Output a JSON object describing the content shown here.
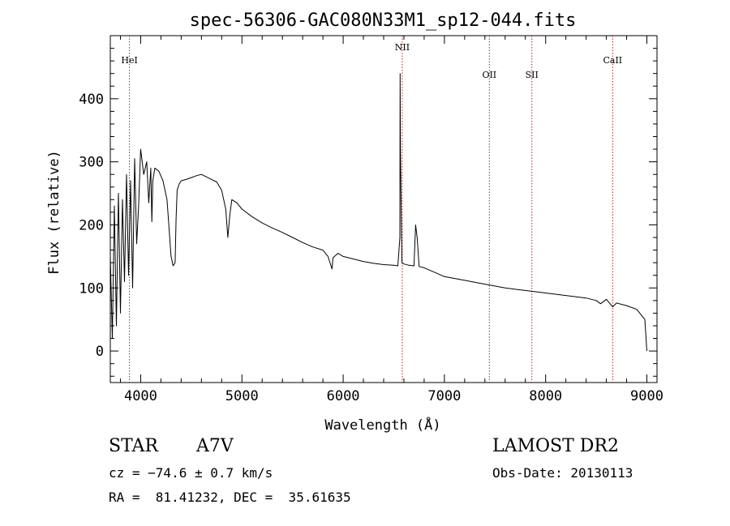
{
  "chart_data": {
    "type": "line",
    "title": "spec-56306-GAC080N33M1_sp12-044.fits",
    "xlabel": "Wavelength (Å)",
    "ylabel": "Flux (relative)",
    "xlim": [
      3700,
      9100
    ],
    "ylim": [
      -50,
      500
    ],
    "x_ticks": [
      4000,
      5000,
      6000,
      7000,
      8000,
      9000
    ],
    "x_tick_labels": [
      "4000",
      "5000",
      "6000",
      "7000",
      "8000",
      "9000"
    ],
    "y_ticks": [
      0,
      100,
      200,
      300,
      400
    ],
    "y_tick_labels": [
      "0",
      "100",
      "200",
      "300",
      "400"
    ],
    "grid": false,
    "series": [
      {
        "x": [
          3700,
          3720,
          3740,
          3760,
          3780,
          3800,
          3820,
          3840,
          3860,
          3880,
          3900,
          3920,
          3940,
          3960,
          3980,
          4000,
          4030,
          4060,
          4080,
          4100,
          4110,
          4120,
          4140,
          4180,
          4220,
          4260,
          4300,
          4320,
          4340,
          4350,
          4360,
          4380,
          4400,
          4450,
          4500,
          4550,
          4600,
          4650,
          4700,
          4750,
          4800,
          4840,
          4861,
          4880,
          4900,
          4950,
          5000,
          5100,
          5200,
          5300,
          5400,
          5500,
          5600,
          5700,
          5800,
          5850,
          5890,
          5900,
          5950,
          6000,
          6100,
          6200,
          6300,
          6400,
          6500,
          6540,
          6560,
          6563,
          6566,
          6580,
          6600,
          6650,
          6700,
          6716,
          6731,
          6750,
          6800,
          6900,
          7000,
          7200,
          7400,
          7600,
          7800,
          8000,
          8200,
          8400,
          8500,
          8542,
          8560,
          8600,
          8662,
          8700,
          8800,
          8900,
          8980,
          9000
        ],
        "y": [
          150,
          20,
          230,
          40,
          250,
          60,
          240,
          110,
          280,
          120,
          270,
          100,
          305,
          170,
          230,
          320,
          280,
          300,
          235,
          290,
          205,
          270,
          290,
          285,
          270,
          240,
          150,
          135,
          140,
          210,
          255,
          265,
          270,
          272,
          275,
          278,
          280,
          276,
          272,
          268,
          255,
          225,
          180,
          215,
          240,
          235,
          225,
          213,
          203,
          195,
          188,
          180,
          172,
          165,
          160,
          150,
          130,
          148,
          155,
          150,
          146,
          142,
          139,
          137,
          136,
          135,
          180,
          440,
          320,
          140,
          138,
          136,
          135,
          200,
          180,
          134,
          132,
          125,
          118,
          112,
          106,
          100,
          96,
          92,
          88,
          84,
          80,
          75,
          77,
          82,
          70,
          76,
          72,
          66,
          50,
          0
        ]
      }
    ],
    "line_markers": [
      {
        "label": "HeI",
        "x": 3889
      },
      {
        "label": "NII",
        "x": 6584
      },
      {
        "label": "OII",
        "x": 7444
      },
      {
        "label": "SII",
        "x": 7864
      },
      {
        "label": "CaII",
        "x": 8662
      }
    ],
    "info": {
      "object_class": "STAR",
      "subclass": "A7V",
      "survey": "LAMOST DR2",
      "cz": "cz = −74.6 ± 0.7 km/s",
      "obs_date": "Obs-Date: 20130113",
      "coords": "RA =  81.41232, DEC =  35.61635"
    }
  }
}
